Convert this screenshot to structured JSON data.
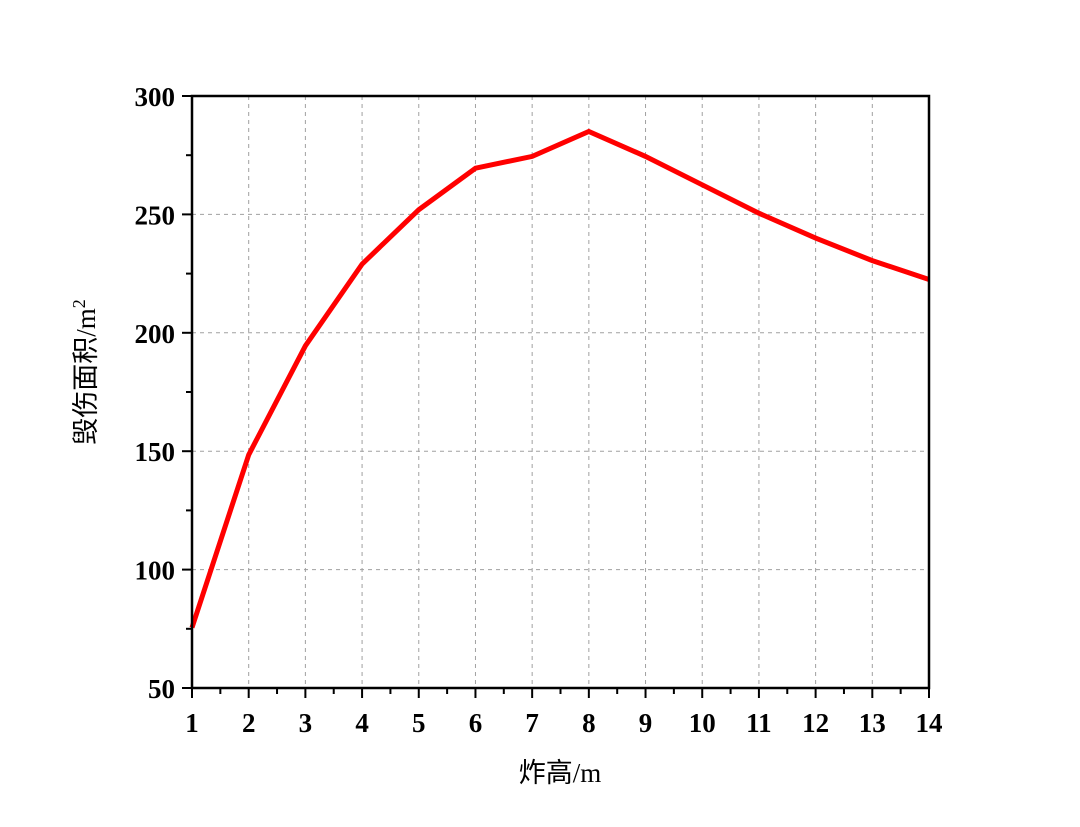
{
  "chart_data": {
    "type": "line",
    "title": "",
    "xlabel": "炸高/m",
    "ylabel": "毁伤面积/m",
    "ylabel_superscript": "2",
    "x": [
      1,
      2,
      3,
      4,
      5,
      6,
      7,
      8,
      9,
      10,
      11,
      12,
      13,
      14
    ],
    "series": [
      {
        "name": "毁伤面积",
        "color": "#ff0000",
        "values": [
          75.5,
          148.5,
          194.5,
          229,
          252,
          269.5,
          274.5,
          285,
          274.5,
          262.5,
          250.5,
          240,
          230.5,
          222.5
        ]
      }
    ],
    "xlim": [
      1,
      14
    ],
    "ylim": [
      50,
      300
    ],
    "x_ticks": [
      "1",
      "2",
      "3",
      "4",
      "5",
      "6",
      "7",
      "8",
      "9",
      "10",
      "11",
      "12",
      "13",
      "14"
    ],
    "y_ticks": [
      "50",
      "100",
      "150",
      "200",
      "250",
      "300"
    ],
    "y_minor_step": 25,
    "x_minor_step": 0.5,
    "grid": true,
    "grid_style": "dashed",
    "legend": null
  }
}
